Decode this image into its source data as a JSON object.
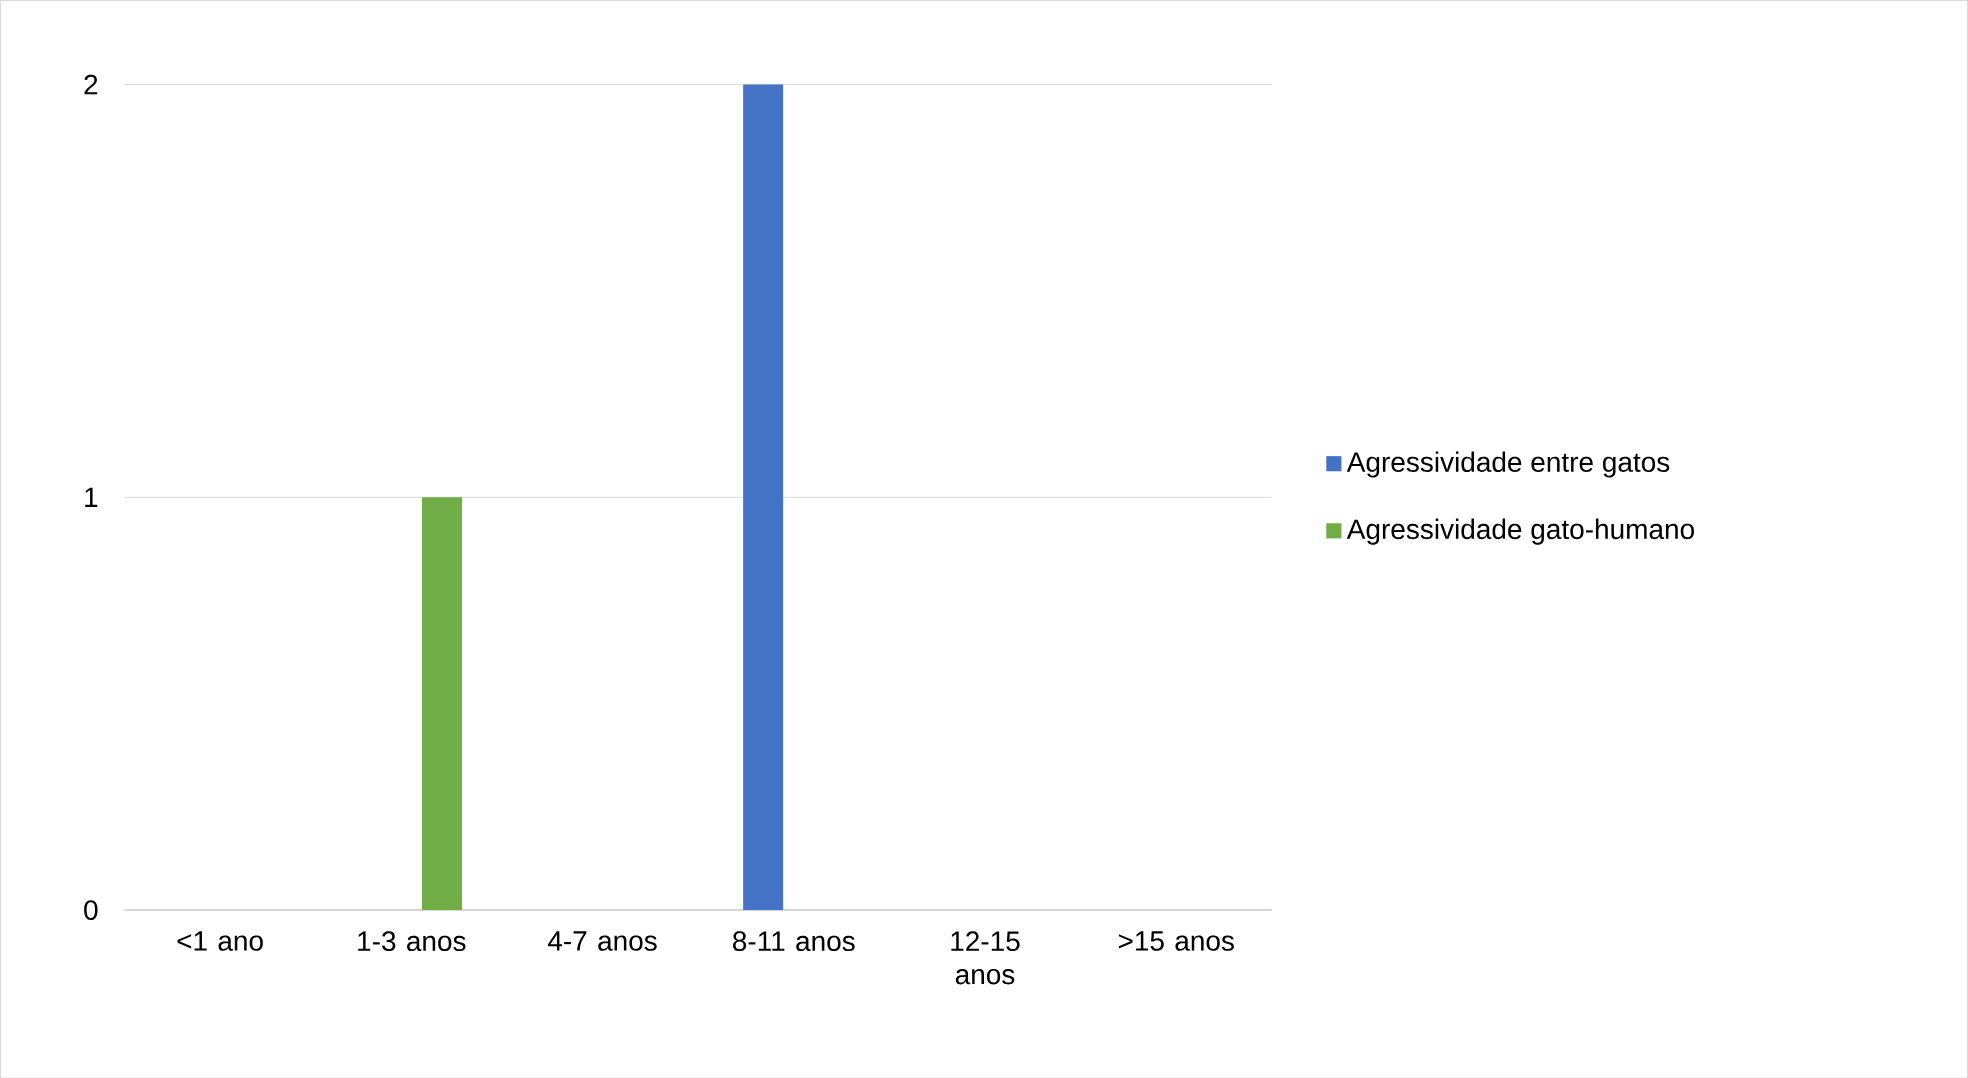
{
  "chart_data": {
    "type": "bar",
    "categories": [
      "<1 ano",
      "1-3 anos",
      "4-7 anos",
      "8-11 anos",
      "12-15 anos",
      ">15 anos"
    ],
    "series": [
      {
        "name": "Agressividade entre gatos",
        "color": "#4472c4",
        "values": [
          0,
          0,
          0,
          2,
          0,
          0
        ]
      },
      {
        "name": "Agressividade gato-humano",
        "color": "#70ad47",
        "values": [
          0,
          1,
          0,
          0,
          0,
          0
        ]
      }
    ],
    "ylim": [
      0,
      2
    ],
    "yticks": [
      0,
      1,
      2
    ],
    "grid": "y",
    "legend": "right"
  }
}
